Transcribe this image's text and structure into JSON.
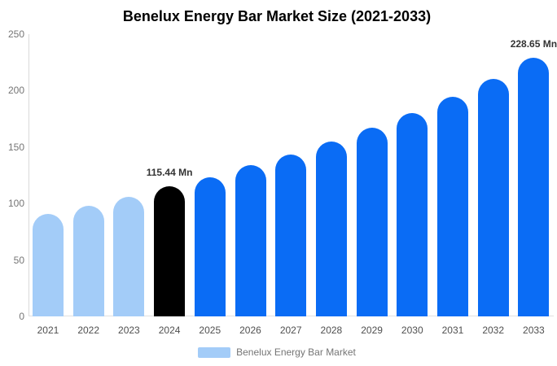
{
  "title": "Benelux Energy Bar Market Size (2021-2033)",
  "colors": {
    "historical_bar": "#a3ccf8",
    "base_year_bar": "#000000",
    "forecast_bar": "#0a6cf5",
    "axis_line": "#d9d9d9",
    "baseline": "#e0e0e0",
    "y_tick_text": "#757575",
    "x_tick_text": "#4f4f4f",
    "annotation_text": "#333333",
    "title_text": "#000000",
    "background": "#ffffff"
  },
  "legend": {
    "label": "Benelux Energy Bar Market",
    "swatch_color": "#a3ccf8"
  },
  "chart_data": {
    "type": "bar",
    "title": "Benelux Energy Bar Market Size (2021-2033)",
    "unit": "Mn",
    "categories": [
      "2021",
      "2022",
      "2023",
      "2024",
      "2025",
      "2026",
      "2027",
      "2028",
      "2029",
      "2030",
      "2031",
      "2032",
      "2033"
    ],
    "values": [
      90.5,
      98,
      105.5,
      115.44,
      123,
      133.5,
      143.5,
      154.5,
      167,
      180,
      194.5,
      210,
      228.65
    ],
    "bar_colors": [
      "#a3ccf8",
      "#a3ccf8",
      "#a3ccf8",
      "#000000",
      "#0a6cf5",
      "#0a6cf5",
      "#0a6cf5",
      "#0a6cf5",
      "#0a6cf5",
      "#0a6cf5",
      "#0a6cf5",
      "#0a6cf5",
      "#0a6cf5"
    ],
    "annotations": [
      {
        "category": "2024",
        "text": "115.44 Mn"
      },
      {
        "category": "2033",
        "text": "228.65 Mn"
      }
    ],
    "xlabel": "",
    "ylabel": "",
    "ylim": [
      0,
      250
    ],
    "yticks": [
      0,
      50,
      100,
      150,
      200,
      250
    ],
    "grid": false,
    "legend_position": "bottom"
  }
}
